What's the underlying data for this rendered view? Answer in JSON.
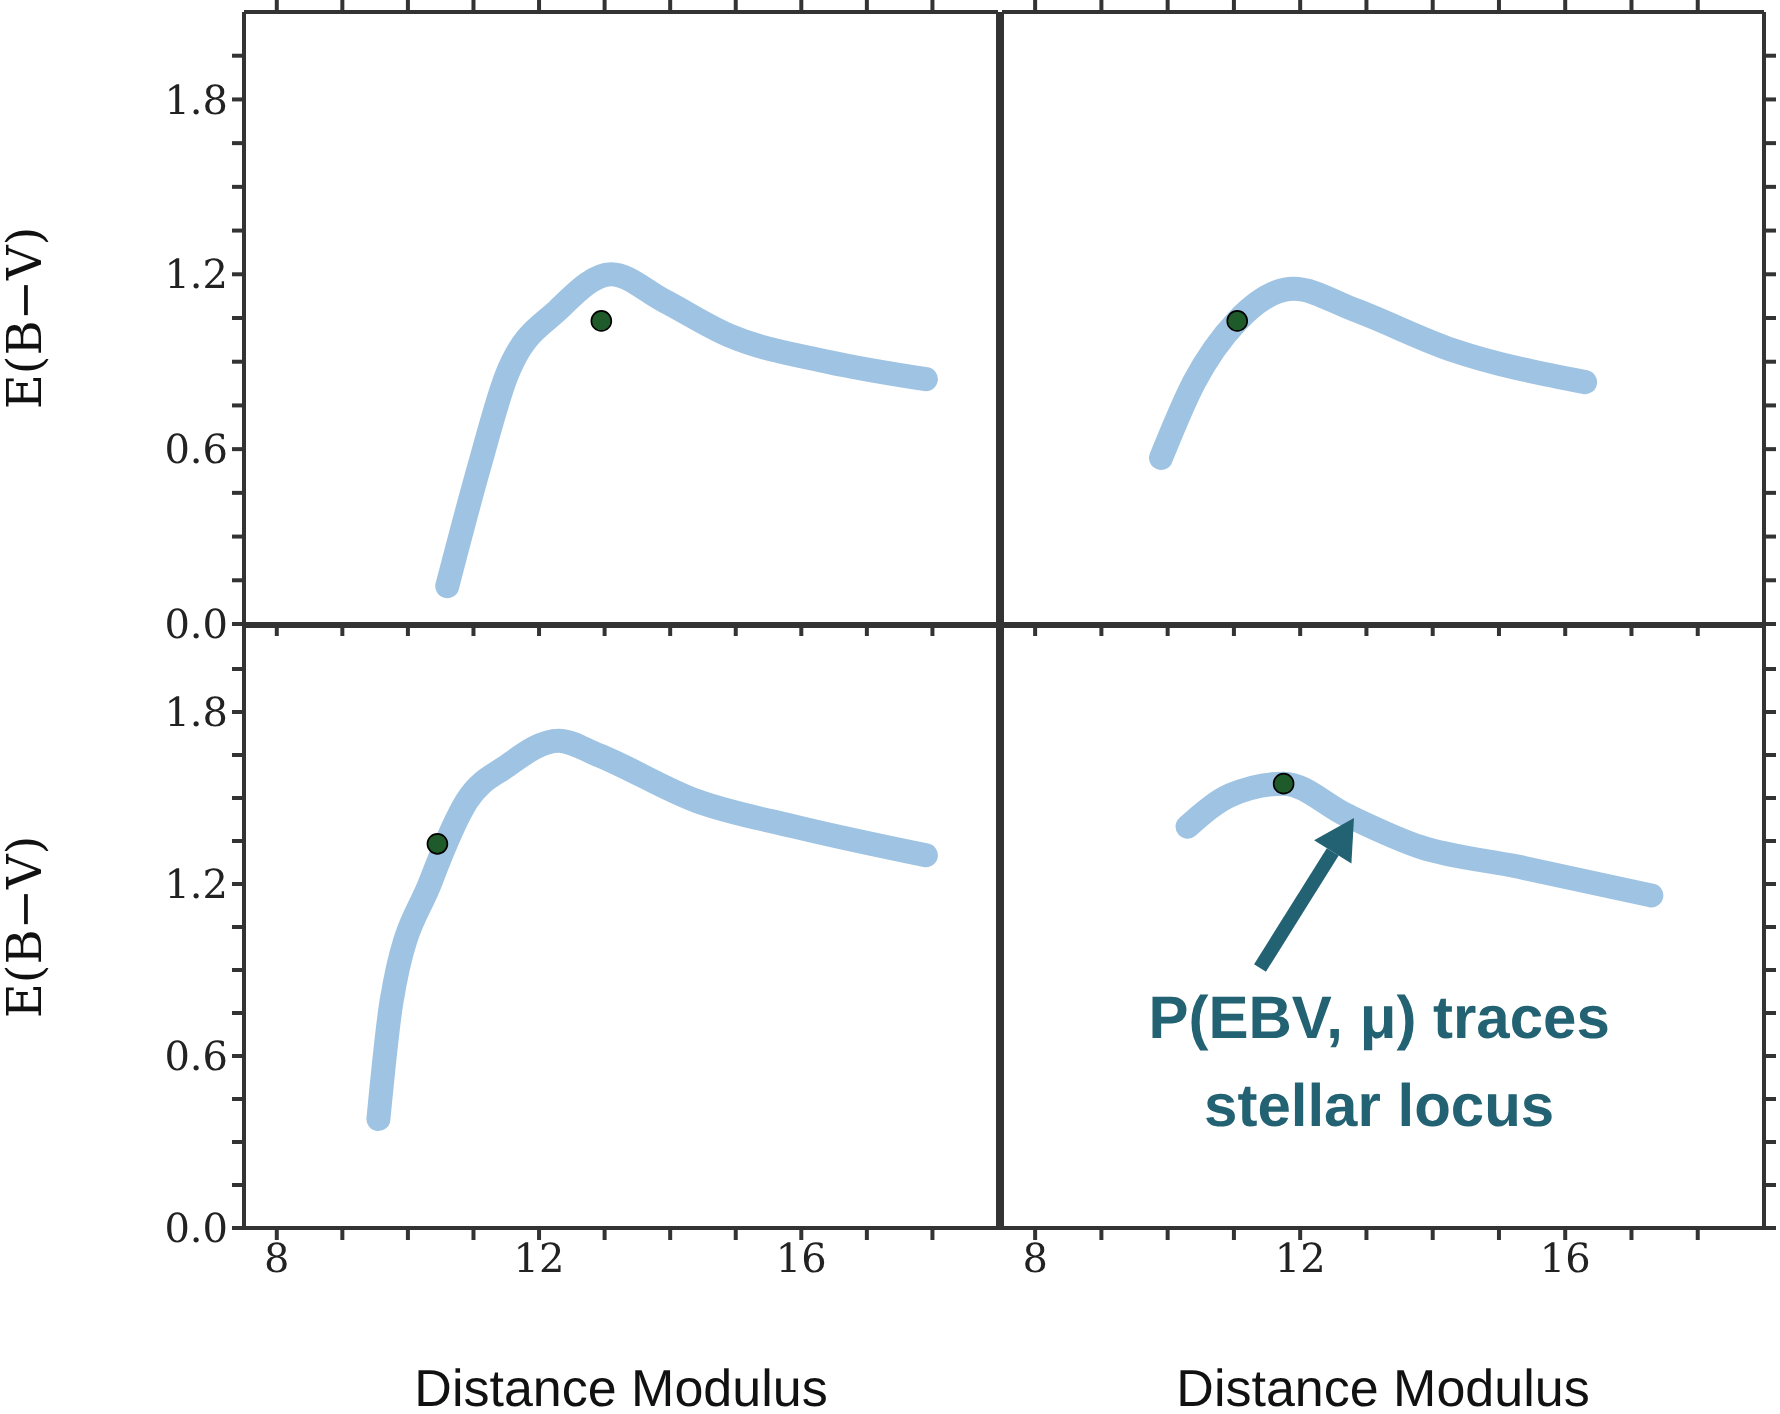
{
  "chart_data": [
    {
      "type": "scatter",
      "ylabel": "E(B−V)",
      "xlim": [
        7.5,
        19
      ],
      "ylim": [
        0,
        2.1
      ],
      "tick_labels": "y",
      "xticks": [
        8,
        {
          "value": 9,
          "label": null
        },
        {
          "value": 10,
          "label": null
        },
        {
          "value": 11,
          "label": null
        },
        12,
        {
          "value": 13,
          "label": null
        },
        {
          "value": 14,
          "label": null
        },
        {
          "value": 15,
          "label": null
        },
        16,
        {
          "value": 17,
          "label": null
        },
        {
          "value": 18,
          "label": null
        }
      ],
      "yticks": [
        {
          "value": 0,
          "label": "0.0"
        },
        {
          "value": 0.15,
          "label": null
        },
        {
          "value": 0.3,
          "label": null
        },
        {
          "value": 0.45,
          "label": null
        },
        0.6,
        {
          "value": 0.75,
          "label": null
        },
        {
          "value": 0.9,
          "label": null
        },
        {
          "value": 1.05,
          "label": null
        },
        1.2,
        {
          "value": 1.35,
          "label": null
        },
        {
          "value": 1.5,
          "label": null
        },
        {
          "value": 1.65,
          "label": null
        },
        1.8,
        {
          "value": 1.95,
          "label": null
        }
      ],
      "series": [
        {
          "type": "line",
          "marker": "none",
          "color": "#3f88c5",
          "x": [
            10.6,
            11.1,
            11.5,
            12.3,
            13.1,
            13.9,
            14.9,
            16.4,
            17.9
          ],
          "values": [
            0.13,
            0.55,
            0.85,
            1.08,
            1.2,
            1.11,
            0.99,
            0.9,
            0.84
          ]
        },
        {
          "type": "scatter",
          "marker": "circle",
          "color": "#1f5a2a",
          "x": [
            12.95
          ],
          "values": [
            1.04
          ]
        }
      ]
    },
    {
      "type": "scatter",
      "xlim": [
        7.5,
        19
      ],
      "ylim": [
        0,
        2.1
      ],
      "tick_labels": false,
      "xticks": [
        8,
        {
          "value": 9,
          "label": null
        },
        {
          "value": 10,
          "label": null
        },
        {
          "value": 11,
          "label": null
        },
        12,
        {
          "value": 13,
          "label": null
        },
        {
          "value": 14,
          "label": null
        },
        {
          "value": 15,
          "label": null
        },
        16,
        {
          "value": 17,
          "label": null
        },
        {
          "value": 18,
          "label": null
        }
      ],
      "yticks": [
        0,
        {
          "value": 0.15,
          "label": null
        },
        {
          "value": 0.3,
          "label": null
        },
        {
          "value": 0.45,
          "label": null
        },
        0.6,
        {
          "value": 0.75,
          "label": null
        },
        {
          "value": 0.9,
          "label": null
        },
        {
          "value": 1.05,
          "label": null
        },
        1.2,
        {
          "value": 1.35,
          "label": null
        },
        {
          "value": 1.5,
          "label": null
        },
        {
          "value": 1.65,
          "label": null
        },
        1.8,
        {
          "value": 1.95,
          "label": null
        }
      ],
      "series": [
        {
          "type": "line",
          "marker": "none",
          "color": "#3f88c5",
          "x": [
            9.9,
            10.4,
            11.05,
            11.9,
            12.8,
            14.3,
            16.3
          ],
          "values": [
            0.57,
            0.83,
            1.04,
            1.15,
            1.08,
            0.94,
            0.83
          ]
        },
        {
          "type": "scatter",
          "marker": "circle",
          "color": "#1f5a2a",
          "x": [
            11.05
          ],
          "values": [
            1.04
          ]
        }
      ]
    },
    {
      "type": "scatter",
      "xlabel": "Distance Modulus",
      "ylabel": "E(B−V)",
      "xlim": [
        7.5,
        19
      ],
      "ylim": [
        0,
        2.1
      ],
      "xticks": [
        8,
        {
          "value": 9,
          "label": null
        },
        {
          "value": 10,
          "label": null
        },
        {
          "value": 11,
          "label": null
        },
        12,
        {
          "value": 13,
          "label": null
        },
        {
          "value": 14,
          "label": null
        },
        {
          "value": 15,
          "label": null
        },
        16,
        {
          "value": 17,
          "label": null
        },
        {
          "value": 18,
          "label": null
        }
      ],
      "yticks": [
        {
          "value": 0,
          "label": "0.0"
        },
        {
          "value": 0.15,
          "label": null
        },
        {
          "value": 0.3,
          "label": null
        },
        {
          "value": 0.45,
          "label": null
        },
        0.6,
        {
          "value": 0.75,
          "label": null
        },
        {
          "value": 0.9,
          "label": null
        },
        {
          "value": 1.05,
          "label": null
        },
        1.2,
        {
          "value": 1.35,
          "label": null
        },
        {
          "value": 1.5,
          "label": null
        },
        {
          "value": 1.65,
          "label": null
        },
        1.8,
        {
          "value": 1.95,
          "label": null
        }
      ],
      "series": [
        {
          "type": "line",
          "marker": "none",
          "color": "#3f88c5",
          "x": [
            9.55,
            9.75,
            10.35,
            10.9,
            11.5,
            12.3,
            12.9,
            14.4,
            15.9,
            17.9
          ],
          "values": [
            0.38,
            0.79,
            1.21,
            1.49,
            1.61,
            1.7,
            1.65,
            1.49,
            1.4,
            1.3
          ]
        },
        {
          "type": "scatter",
          "marker": "circle",
          "color": "#1f5a2a",
          "x": [
            10.45
          ],
          "values": [
            1.34
          ]
        }
      ]
    },
    {
      "type": "scatter",
      "xlabel": "Distance Modulus",
      "xlim": [
        7.5,
        19
      ],
      "ylim": [
        0,
        2.1
      ],
      "tick_labels": "x",
      "xticks": [
        8,
        {
          "value": 9,
          "label": null
        },
        {
          "value": 10,
          "label": null
        },
        {
          "value": 11,
          "label": null
        },
        12,
        {
          "value": 13,
          "label": null
        },
        {
          "value": 14,
          "label": null
        },
        {
          "value": 15,
          "label": null
        },
        16,
        {
          "value": 17,
          "label": null
        },
        {
          "value": 18,
          "label": null
        }
      ],
      "yticks": [
        0,
        {
          "value": 0.15,
          "label": null
        },
        {
          "value": 0.3,
          "label": null
        },
        {
          "value": 0.45,
          "label": null
        },
        0.6,
        {
          "value": 0.75,
          "label": null
        },
        {
          "value": 0.9,
          "label": null
        },
        {
          "value": 1.05,
          "label": null
        },
        1.2,
        {
          "value": 1.35,
          "label": null
        },
        {
          "value": 1.5,
          "label": null
        },
        {
          "value": 1.65,
          "label": null
        },
        1.8,
        {
          "value": 1.95,
          "label": null
        }
      ],
      "series": [
        {
          "type": "line",
          "marker": "none",
          "color": "#3f88c5",
          "x": [
            10.3,
            10.95,
            11.75,
            12.7,
            13.8,
            15.3,
            17.3
          ],
          "values": [
            1.4,
            1.51,
            1.55,
            1.44,
            1.33,
            1.26,
            1.16
          ]
        },
        {
          "type": "scatter",
          "marker": "circle",
          "color": "#1f5a2a",
          "x": [
            11.75
          ],
          "values": [
            1.55
          ]
        }
      ],
      "annotations": [
        {
          "text": "P(EBV, μ) traces stellar locus",
          "x": 12.8,
          "y": 1.43
        }
      ]
    }
  ]
}
